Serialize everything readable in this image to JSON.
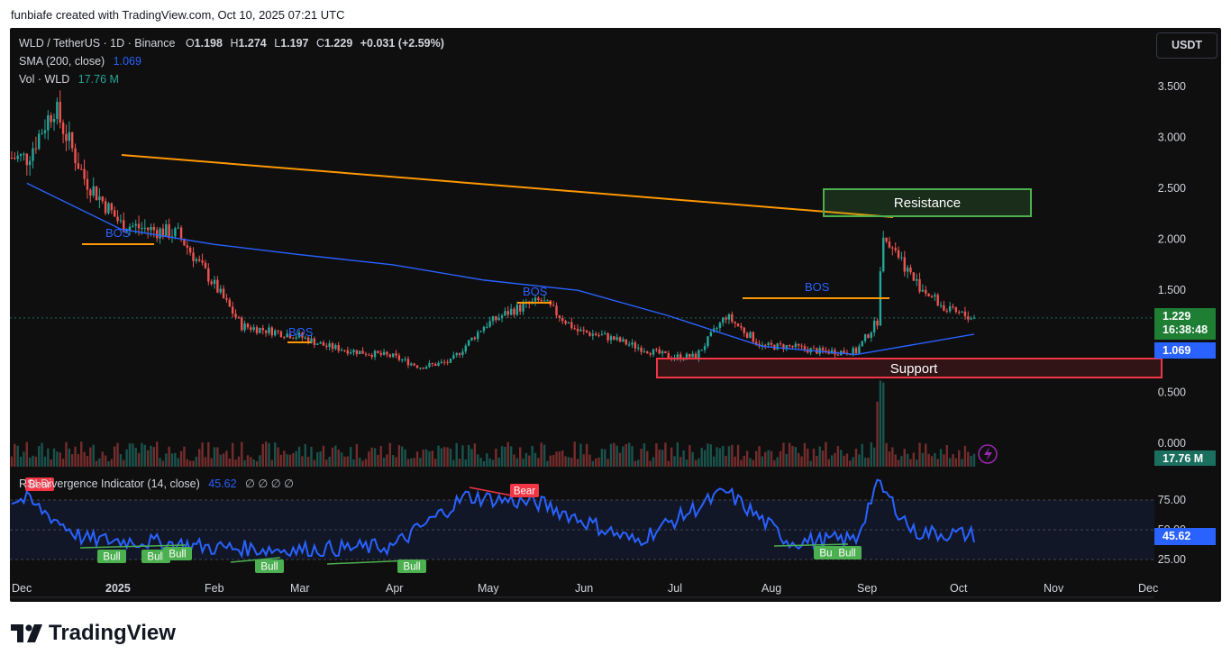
{
  "header_caption": "funbiafe created with TradingView.com, Oct 10, 2025 07:21 UTC",
  "legend": {
    "symbol": "WLD / TetherUS · 1D · Binance",
    "o_label": "O",
    "o": "1.198",
    "h_label": "H",
    "h": "1.274",
    "l_label": "L",
    "l": "1.197",
    "c_label": "C",
    "c": "1.229",
    "change": "+0.031 (+2.59%)",
    "sma_label": "SMA (200, close)",
    "sma_value": "1.069",
    "vol_label": "Vol · WLD",
    "vol_value": "17.76 M",
    "rsi_label": "RSI Divergence Indicator (14, close)",
    "rsi_value": "45.62",
    "rsi_extra": "∅ ∅ ∅ ∅"
  },
  "currency_button": "USDT",
  "price_axis": [
    "3.500",
    "3.000",
    "2.500",
    "2.000",
    "1.500",
    "0.500",
    "0.000"
  ],
  "rsi_axis": [
    "75.00",
    "50.00",
    "25.00"
  ],
  "time_axis": [
    "Dec",
    "2025",
    "Feb",
    "Mar",
    "Apr",
    "May",
    "Jun",
    "Jul",
    "Aug",
    "Sep",
    "Oct",
    "Nov",
    "Dec"
  ],
  "badges": {
    "price": "1.229",
    "countdown": "16:38:48",
    "sma": "1.069",
    "volume": "17.76 M",
    "rsi": "45.62"
  },
  "annotations": {
    "resistance": "Resistance",
    "support": "Support",
    "bos": "BOS",
    "bull": "Bull",
    "bear": "Bear"
  },
  "colors": {
    "up": "#26a69a",
    "down": "#ef5350",
    "sma": "#2962ff",
    "trendline": "#ff9800",
    "resistance": "#4caf50",
    "support": "#f23645",
    "rsi": "#2962ff",
    "background": "#0f0f0f"
  },
  "brand": "TradingView",
  "chart_data": {
    "type": "line",
    "title": "WLD / TetherUS · 1D · Binance",
    "series": [
      {
        "name": "WLD / TetherUS",
        "x": [
          "2024-12-01",
          "2024-12-10",
          "2024-12-20",
          "2025-01-01",
          "2025-01-10",
          "2025-01-20",
          "2025-02-01",
          "2025-02-10",
          "2025-02-20",
          "2025-03-01",
          "2025-03-10",
          "2025-03-20",
          "2025-04-01",
          "2025-04-10",
          "2025-04-20",
          "2025-05-01",
          "2025-05-10",
          "2025-05-20",
          "2025-06-01",
          "2025-06-10",
          "2025-06-20",
          "2025-07-01",
          "2025-07-10",
          "2025-07-20",
          "2025-08-01",
          "2025-08-10",
          "2025-08-20",
          "2025-09-01",
          "2025-09-08",
          "2025-09-10",
          "2025-09-20",
          "2025-10-01",
          "2025-10-10"
        ],
        "values": [
          2.8,
          3.3,
          2.6,
          2.15,
          2.1,
          2.05,
          1.55,
          1.15,
          1.1,
          1.05,
          0.95,
          0.9,
          0.85,
          0.75,
          0.8,
          1.15,
          1.3,
          1.4,
          1.1,
          1.05,
          0.95,
          0.85,
          0.85,
          1.25,
          0.95,
          0.95,
          0.9,
          0.9,
          1.2,
          2.1,
          1.6,
          1.3,
          1.229
        ]
      },
      {
        "name": "SMA (200, close)",
        "x": [
          "2024-12-01",
          "2025-01-01",
          "2025-02-01",
          "2025-03-01",
          "2025-04-01",
          "2025-05-01",
          "2025-06-01",
          "2025-07-01",
          "2025-08-01",
          "2025-09-01",
          "2025-10-10"
        ],
        "values": [
          2.55,
          2.1,
          1.95,
          1.85,
          1.75,
          1.6,
          1.5,
          1.25,
          0.95,
          0.87,
          1.069
        ]
      },
      {
        "name": "RSI Divergence Indicator (14, close)",
        "x": [
          "2024-12-01",
          "2024-12-20",
          "2025-01-10",
          "2025-02-01",
          "2025-03-01",
          "2025-04-01",
          "2025-04-25",
          "2025-05-20",
          "2025-06-20",
          "2025-07-20",
          "2025-08-10",
          "2025-09-01",
          "2025-09-08",
          "2025-09-20",
          "2025-10-10"
        ],
        "values": [
          75,
          42,
          40,
          35,
          33,
          36,
          78,
          72,
          40,
          82,
          40,
          42,
          90,
          48,
          45.62
        ]
      }
    ],
    "volume_last": "17.76 M",
    "ylim": [
      0,
      3.8
    ],
    "rsi_ylim": [
      20,
      95
    ],
    "log_scale": false,
    "grid": false
  }
}
